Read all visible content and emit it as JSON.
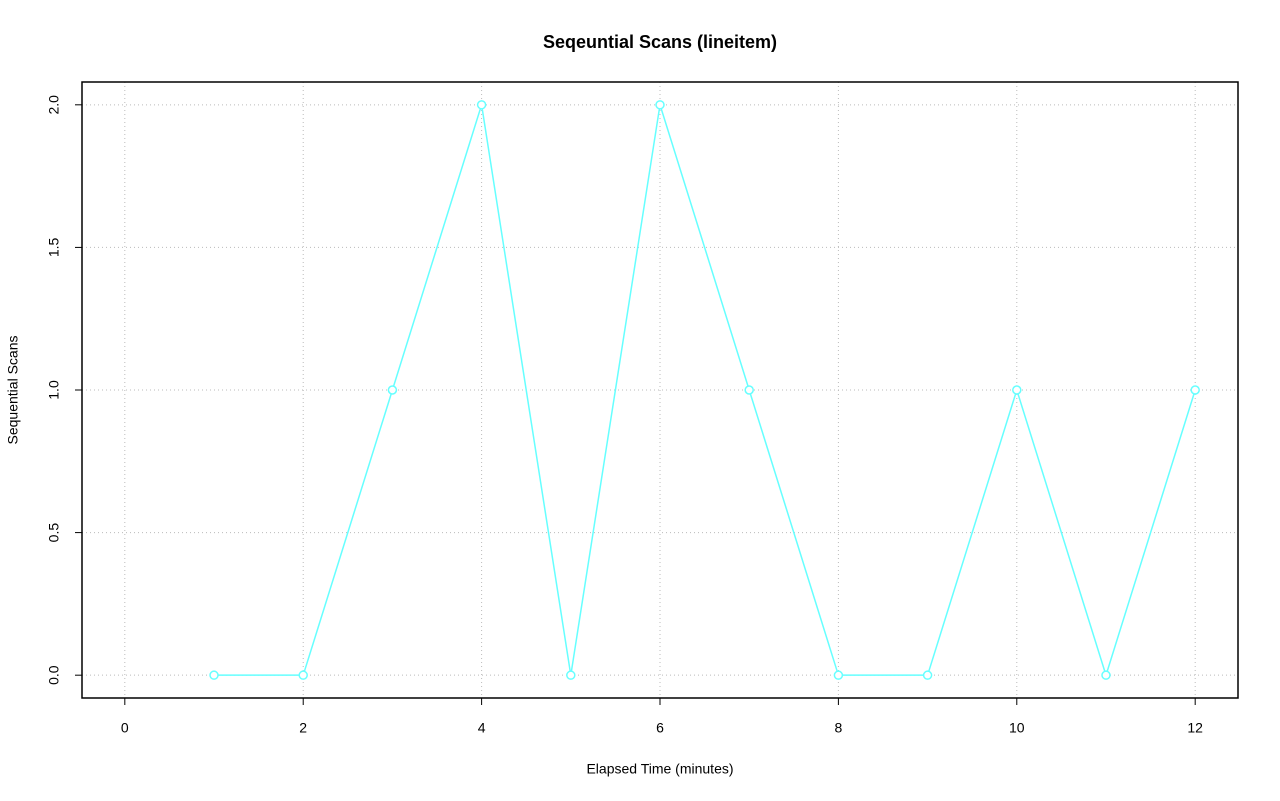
{
  "chart_data": {
    "type": "line",
    "title": "Seqeuntial Scans (lineitem)",
    "x_label": "Elapsed Time (minutes)",
    "y_label": "Sequential Scans",
    "x": [
      1,
      2,
      3,
      4,
      5,
      6,
      7,
      8,
      9,
      10,
      11,
      12
    ],
    "series": [
      {
        "name": "Sequential Scans",
        "color": "#66ffff",
        "values": [
          0,
          0,
          1,
          2,
          0,
          2,
          1,
          0,
          0,
          1,
          0,
          1
        ]
      }
    ],
    "xlim": [
      -0.48,
      12.48
    ],
    "ylim": [
      -0.08,
      2.08
    ],
    "xticks": [
      0,
      2,
      4,
      6,
      8,
      10,
      12
    ],
    "yticks": [
      {
        "value": 0,
        "label": "0.0"
      },
      0.5,
      {
        "value": 1,
        "label": "1.0"
      },
      1.5,
      {
        "value": 2,
        "label": "2.0"
      }
    ],
    "grid": true
  }
}
